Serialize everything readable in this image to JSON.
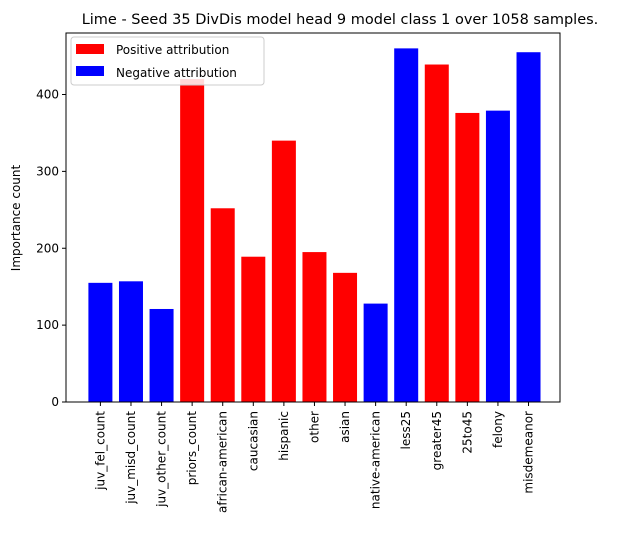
{
  "chart_data": {
    "type": "bar",
    "title": "Lime - Seed 35 DivDis model head 9 model class 1 over 1058 samples.",
    "xlabel": "",
    "ylabel": "Importance count",
    "ylim": [
      0,
      480
    ],
    "yticks": [
      0,
      100,
      200,
      300,
      400
    ],
    "grid": false,
    "legend_position": "top-left",
    "colors": {
      "positive": "#ff0000",
      "negative": "#0000ff"
    },
    "legend": [
      {
        "label": "Positive attribution",
        "color": "#ff0000"
      },
      {
        "label": "Negative attribution",
        "color": "#0000ff"
      }
    ],
    "categories": [
      "juv_fel_count",
      "juv_misd_count",
      "juv_other_count",
      "priors_count",
      "african-american",
      "caucasian",
      "hispanic",
      "other",
      "asian",
      "native-american",
      "less25",
      "greater45",
      "25to45",
      "felony",
      "misdemeanor"
    ],
    "values": [
      155,
      157,
      121,
      420,
      252,
      189,
      340,
      195,
      168,
      128,
      460,
      439,
      376,
      379,
      455
    ],
    "attribution": [
      "negative",
      "negative",
      "negative",
      "positive",
      "positive",
      "positive",
      "positive",
      "positive",
      "positive",
      "negative",
      "negative",
      "positive",
      "positive",
      "negative",
      "negative"
    ]
  }
}
